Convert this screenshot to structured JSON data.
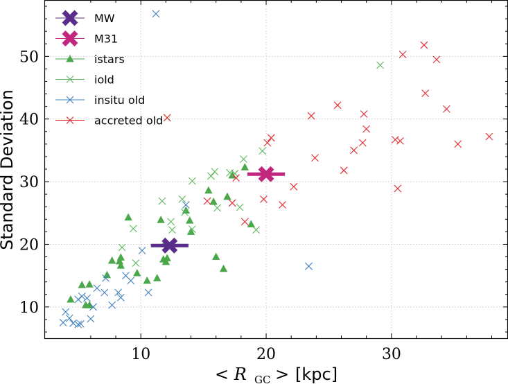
{
  "chart_data": {
    "type": "scatter",
    "title": "",
    "xlabel_math": "< R",
    "xlabel_sub": "GC",
    "xlabel_close": " >",
    "xlabel_unit": "[kpc]",
    "ylabel": "Standard Deviation",
    "xlim": [
      2.3,
      39.3
    ],
    "ylim": [
      5,
      59
    ],
    "xticks": [
      10,
      20,
      30
    ],
    "yticks": [
      10,
      20,
      30,
      40,
      50
    ],
    "grid": true,
    "legend_placement": "top-left",
    "colors": {
      "MW": "#5a2d8a",
      "M31": "#c2277f",
      "istars": "#4aa84a",
      "iold": "#5cb85c",
      "insitu old": "#3f7fbf",
      "accreted old": "#e0282e"
    },
    "series": [
      {
        "name": "MW",
        "marker": "X-big",
        "points": [
          [
            12.3,
            19.8
          ]
        ],
        "xerr": 1.5
      },
      {
        "name": "M31",
        "marker": "X-big",
        "points": [
          [
            20.0,
            31.2
          ]
        ],
        "xerr": 1.5
      },
      {
        "name": "istars",
        "marker": "triangle",
        "points": [
          [
            4.4,
            11.2
          ],
          [
            5.3,
            13.5
          ],
          [
            5.6,
            10.3
          ],
          [
            5.9,
            13.6
          ],
          [
            5.9,
            10.3
          ],
          [
            7.3,
            15.1
          ],
          [
            7.7,
            17.4
          ],
          [
            8.3,
            17.3
          ],
          [
            8.4,
            17.9
          ],
          [
            8.4,
            16.6
          ],
          [
            9.0,
            24.3
          ],
          [
            9.7,
            15.4
          ],
          [
            10.5,
            14.2
          ],
          [
            11.3,
            14.6
          ],
          [
            11.6,
            23.9
          ],
          [
            11.8,
            17.6
          ],
          [
            11.9,
            20.1
          ],
          [
            12.0,
            17.2
          ],
          [
            12.1,
            17.8
          ],
          [
            13.6,
            25.4
          ],
          [
            13.9,
            23.8
          ],
          [
            14.0,
            22.0
          ],
          [
            15.4,
            28.6
          ],
          [
            15.8,
            26.8
          ],
          [
            16.0,
            18.0
          ],
          [
            16.6,
            16.1
          ],
          [
            16.9,
            27.6
          ],
          [
            17.3,
            31.0
          ],
          [
            18.3,
            32.3
          ],
          [
            18.8,
            23.2
          ]
        ]
      },
      {
        "name": "iold",
        "marker": "x",
        "points": [
          [
            8.5,
            19.5
          ],
          [
            9.4,
            22.5
          ],
          [
            9.6,
            17.0
          ],
          [
            11.7,
            26.9
          ],
          [
            12.1,
            40.2
          ],
          [
            12.4,
            23.6
          ],
          [
            12.5,
            22.3
          ],
          [
            13.3,
            27.2
          ],
          [
            13.5,
            25.1
          ],
          [
            14.1,
            30.1
          ],
          [
            14.1,
            22.4
          ],
          [
            15.6,
            30.9
          ],
          [
            15.9,
            31.6
          ],
          [
            16.1,
            25.8
          ],
          [
            17.1,
            31.4
          ],
          [
            17.5,
            31.3
          ],
          [
            17.9,
            25.9
          ],
          [
            18.2,
            33.6
          ],
          [
            19.2,
            22.3
          ],
          [
            19.7,
            34.9
          ],
          [
            29.1,
            48.6
          ]
        ]
      },
      {
        "name": "insitu old",
        "marker": "x",
        "points": [
          [
            3.8,
            7.5
          ],
          [
            4.0,
            9.2
          ],
          [
            4.3,
            8.2
          ],
          [
            4.6,
            7.4
          ],
          [
            5.0,
            7.2
          ],
          [
            5.2,
            7.3
          ],
          [
            5.0,
            11.2
          ],
          [
            5.3,
            11.7
          ],
          [
            5.7,
            11.4
          ],
          [
            6.0,
            8.1
          ],
          [
            6.2,
            10.0
          ],
          [
            6.5,
            13.0
          ],
          [
            7.1,
            12.3
          ],
          [
            7.2,
            14.6
          ],
          [
            7.7,
            10.3
          ],
          [
            8.2,
            12.3
          ],
          [
            8.4,
            11.5
          ],
          [
            8.8,
            15.0
          ],
          [
            9.2,
            14.2
          ],
          [
            10.1,
            19.0
          ],
          [
            10.6,
            12.3
          ],
          [
            11.2,
            56.8
          ],
          [
            13.6,
            26.3
          ],
          [
            23.4,
            16.5
          ]
        ]
      },
      {
        "name": "accreted old",
        "marker": "x",
        "points": [
          [
            12.1,
            40.2
          ],
          [
            15.3,
            26.9
          ],
          [
            17.3,
            26.6
          ],
          [
            17.6,
            30.6
          ],
          [
            18.3,
            23.6
          ],
          [
            19.8,
            27.2
          ],
          [
            20.1,
            36.2
          ],
          [
            20.4,
            37.0
          ],
          [
            21.3,
            26.3
          ],
          [
            22.2,
            29.2
          ],
          [
            23.6,
            40.5
          ],
          [
            23.9,
            33.8
          ],
          [
            25.7,
            42.2
          ],
          [
            26.2,
            31.8
          ],
          [
            27.0,
            35.0
          ],
          [
            27.7,
            36.2
          ],
          [
            27.8,
            40.8
          ],
          [
            28.0,
            38.4
          ],
          [
            30.3,
            36.7
          ],
          [
            30.5,
            28.9
          ],
          [
            30.7,
            36.5
          ],
          [
            30.9,
            50.3
          ],
          [
            32.6,
            51.8
          ],
          [
            32.7,
            44.1
          ],
          [
            33.6,
            49.5
          ],
          [
            34.4,
            41.6
          ],
          [
            35.3,
            36.0
          ],
          [
            37.8,
            37.2
          ]
        ]
      }
    ]
  }
}
